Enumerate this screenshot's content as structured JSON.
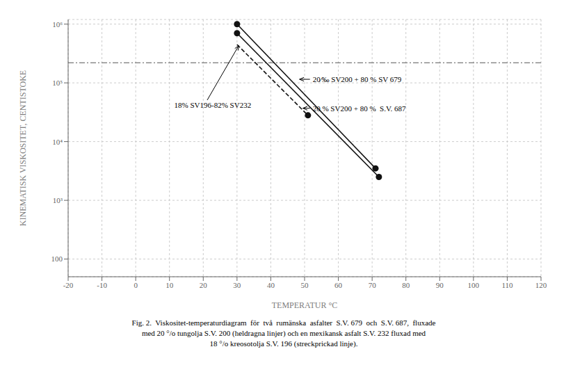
{
  "chart_data": {
    "type": "line",
    "xlabel": "TEMPERATUR °C",
    "ylabel": "KINEMATISK VISKOSITET, CENTISTOKE",
    "log": "y",
    "grid": true,
    "xlim": [
      -20,
      120
    ],
    "xticks": [
      -20,
      -10,
      0,
      10,
      20,
      30,
      40,
      50,
      60,
      70,
      80,
      90,
      100,
      110,
      120
    ],
    "ylim": [
      50,
      1200000
    ],
    "yticks": [
      100,
      {
        "value": 1000,
        "label": "10³"
      },
      {
        "value": 10000,
        "label": "10⁴"
      },
      {
        "value": 100000,
        "label": "10⁵"
      },
      {
        "value": 1000000,
        "label": "10⁶"
      }
    ],
    "series": [
      {
        "x": [
          30,
          71
        ],
        "values": [
          1000000,
          3500
        ],
        "color": "#111111",
        "line_style": "solid"
      },
      {
        "x": [
          30,
          72
        ],
        "values": [
          700000,
          2500
        ],
        "color": "#111111",
        "line_style": "solid"
      },
      {
        "x": [
          30,
          51
        ],
        "values": [
          450000,
          28000
        ],
        "color": "#111111",
        "line_style": "dashed"
      },
      {
        "type": "scatter",
        "x": [
          30,
          71,
          30,
          72,
          51
        ],
        "values": [
          1000000,
          3500,
          700000,
          2500,
          28000
        ],
        "color": "#111111",
        "marker": "circle"
      }
    ],
    "horizontal_line": {
      "y": 220000,
      "color": "#555555",
      "line_style": "dashdot"
    },
    "annotations": [
      {
        "text": "20⁄‰ SV200 + 80 % SV 679",
        "x": 48.5,
        "y": 115000,
        "text_x": 52,
        "text_y": 115000
      },
      {
        "text": "20 % SV200 + 80 %  S.V. 687",
        "x": 49.5,
        "y": 37000,
        "text_x": 52,
        "text_y": 37000
      },
      {
        "text": "18% SV196-82% SV232",
        "x": 30.5,
        "y": 430000,
        "text_x": 11,
        "text_y": 42000
      }
    ],
    "caption": [
      "Fig. 2.  Viskositet-temperaturdiagram  för  två  rumänska  asfalter  S.V. 679  och  S.V. 687,  fluxade",
      "med 20 °/o tungolja S.V. 200 (heldragna linjer) och en mexikansk asfalt S.V. 232 fluxad med",
      "18 °/o kreosotolja S.V. 196 (streckprickad linje)."
    ]
  }
}
